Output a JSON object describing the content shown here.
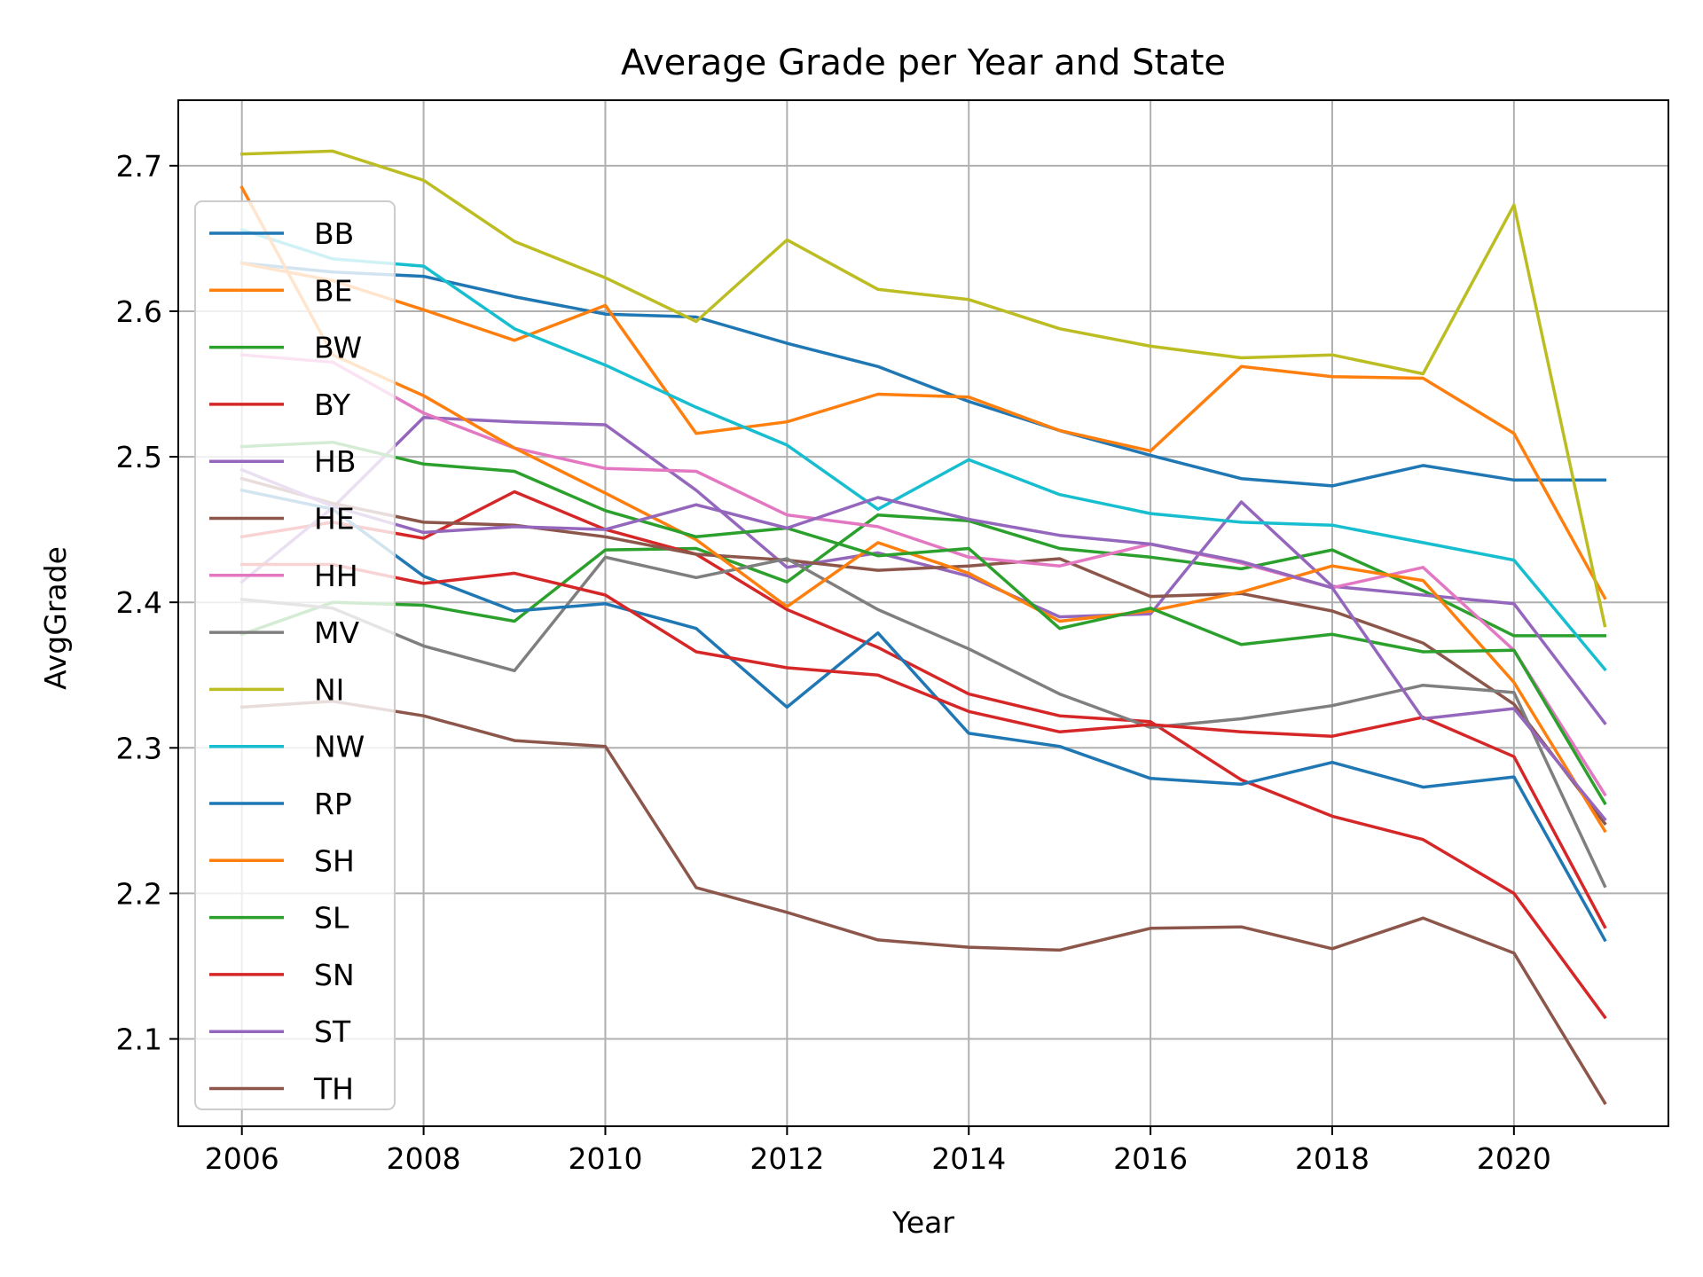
{
  "chart_data": {
    "type": "line",
    "title": "Average Grade per Year and State",
    "xlabel": "Year",
    "ylabel": "AvgGrade",
    "xlim": [
      2005.3,
      2021.7
    ],
    "ylim": [
      2.04,
      2.745
    ],
    "xticks": [
      2006,
      2008,
      2010,
      2012,
      2014,
      2016,
      2018,
      2020
    ],
    "yticks": [
      2.1,
      2.2,
      2.3,
      2.4,
      2.5,
      2.6,
      2.7
    ],
    "ytick_labels": [
      "2.1",
      "2.2",
      "2.3",
      "2.4",
      "2.5",
      "2.6",
      "2.7"
    ],
    "grid": true,
    "legend_position": "left",
    "x": [
      2006,
      2007,
      2008,
      2009,
      2010,
      2011,
      2012,
      2013,
      2014,
      2015,
      2016,
      2017,
      2018,
      2019,
      2020,
      2021
    ],
    "series": [
      {
        "name": "BB",
        "color": "#1f77b4",
        "values": [
          2.633,
          2.627,
          2.624,
          2.61,
          2.598,
          2.596,
          2.578,
          2.562,
          2.538,
          2.518,
          2.501,
          2.485,
          2.48,
          2.494,
          2.484,
          2.484
        ]
      },
      {
        "name": "BE",
        "color": "#ff7f0e",
        "values": [
          2.633,
          2.621,
          2.601,
          2.58,
          2.604,
          2.516,
          2.524,
          2.543,
          2.541,
          2.518,
          2.504,
          2.562,
          2.555,
          2.554,
          2.516,
          2.403
        ]
      },
      {
        "name": "BW",
        "color": "#2ca02c",
        "values": [
          2.378,
          2.4,
          2.398,
          2.387,
          2.436,
          2.437,
          2.414,
          2.46,
          2.456,
          2.437,
          2.431,
          2.423,
          2.436,
          2.408,
          2.377,
          2.377
        ]
      },
      {
        "name": "BY",
        "color": "#d62728",
        "values": [
          2.445,
          2.455,
          2.444,
          2.476,
          2.45,
          2.433,
          2.395,
          2.369,
          2.337,
          2.322,
          2.318,
          2.278,
          2.253,
          2.237,
          2.2,
          2.115
        ]
      },
      {
        "name": "HB",
        "color": "#9467bd",
        "values": [
          2.414,
          2.465,
          2.527,
          2.524,
          2.522,
          2.477,
          2.424,
          2.434,
          2.418,
          2.39,
          2.392,
          2.469,
          2.411,
          2.405,
          2.399,
          2.317
        ]
      },
      {
        "name": "HE",
        "color": "#8c564b",
        "values": [
          2.485,
          2.468,
          2.455,
          2.453,
          2.445,
          2.433,
          2.429,
          2.422,
          2.425,
          2.43,
          2.404,
          2.406,
          2.394,
          2.372,
          2.33,
          2.248
        ]
      },
      {
        "name": "HH",
        "color": "#e377c2",
        "values": [
          2.57,
          2.565,
          2.53,
          2.506,
          2.492,
          2.49,
          2.46,
          2.452,
          2.431,
          2.425,
          2.44,
          2.427,
          2.41,
          2.424,
          2.367,
          2.268
        ]
      },
      {
        "name": "MV",
        "color": "#7f7f7f",
        "values": [
          2.402,
          2.396,
          2.37,
          2.353,
          2.431,
          2.417,
          2.43,
          2.395,
          2.368,
          2.337,
          2.314,
          2.32,
          2.329,
          2.343,
          2.338,
          2.205
        ]
      },
      {
        "name": "NI",
        "color": "#bcbd22",
        "values": [
          2.708,
          2.71,
          2.69,
          2.648,
          2.623,
          2.593,
          2.649,
          2.615,
          2.608,
          2.588,
          2.576,
          2.568,
          2.57,
          2.557,
          2.673,
          2.384
        ]
      },
      {
        "name": "NW",
        "color": "#17becf",
        "values": [
          2.656,
          2.636,
          2.631,
          2.588,
          2.563,
          2.534,
          2.508,
          2.464,
          2.498,
          2.474,
          2.461,
          2.455,
          2.453,
          2.441,
          2.429,
          2.354
        ]
      },
      {
        "name": "RP",
        "color": "#1f77b4",
        "values": [
          2.477,
          2.464,
          2.418,
          2.394,
          2.399,
          2.382,
          2.328,
          2.379,
          2.31,
          2.301,
          2.279,
          2.275,
          2.29,
          2.273,
          2.28,
          2.168
        ]
      },
      {
        "name": "SH",
        "color": "#ff7f0e",
        "values": [
          2.685,
          2.57,
          2.542,
          2.506,
          2.475,
          2.443,
          2.397,
          2.441,
          2.42,
          2.387,
          2.394,
          2.407,
          2.425,
          2.415,
          2.345,
          2.243
        ]
      },
      {
        "name": "SL",
        "color": "#2ca02c",
        "values": [
          2.507,
          2.51,
          2.495,
          2.49,
          2.463,
          2.445,
          2.451,
          2.432,
          2.437,
          2.382,
          2.396,
          2.371,
          2.378,
          2.366,
          2.367,
          2.262
        ]
      },
      {
        "name": "SN",
        "color": "#d62728",
        "values": [
          2.426,
          2.426,
          2.413,
          2.42,
          2.405,
          2.366,
          2.355,
          2.35,
          2.325,
          2.311,
          2.316,
          2.311,
          2.308,
          2.321,
          2.294,
          2.177
        ]
      },
      {
        "name": "ST",
        "color": "#9467bd",
        "values": [
          2.491,
          2.466,
          2.448,
          2.452,
          2.45,
          2.467,
          2.451,
          2.472,
          2.457,
          2.446,
          2.44,
          2.428,
          2.41,
          2.32,
          2.327,
          2.251
        ]
      },
      {
        "name": "TH",
        "color": "#8c564b",
        "values": [
          2.328,
          2.332,
          2.322,
          2.305,
          2.301,
          2.204,
          2.187,
          2.168,
          2.163,
          2.161,
          2.176,
          2.177,
          2.162,
          2.183,
          2.159,
          2.056
        ]
      }
    ]
  }
}
